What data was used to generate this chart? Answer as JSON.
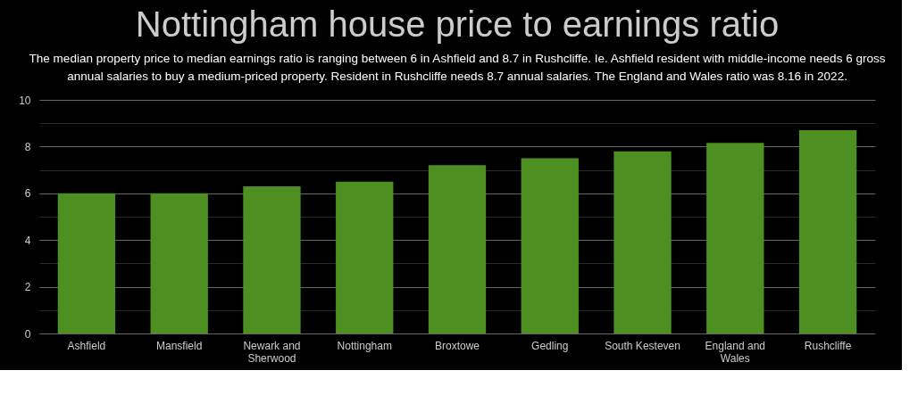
{
  "chart_data": {
    "type": "bar",
    "title": "Nottingham house price to earnings ratio",
    "subtitle": "The median property price to median earnings ratio is ranging between 6 in Ashfield and 8.7 in Rushcliffe. Ie. Ashfield resident with middle-income needs 6 gross annual salaries to buy a medium-priced property. Resident in Rushcliffe needs 8.7 annual salaries. The England and Wales ratio was 8.16 in 2022.",
    "categories": [
      "Ashfield",
      "Mansfield",
      "Newark and Sherwood",
      "Nottingham",
      "Broxtowe",
      "Gedling",
      "South Kesteven",
      "England and Wales",
      "Rushcliffe"
    ],
    "values": [
      6.0,
      6.0,
      6.3,
      6.5,
      7.2,
      7.5,
      7.8,
      8.16,
      8.7
    ],
    "color": "#4d9021",
    "ylim": [
      0,
      10
    ],
    "yticks": [
      0,
      {
        "value": 1,
        "label": null
      },
      2,
      {
        "value": 3,
        "label": null
      },
      4,
      {
        "value": 5,
        "label": null
      },
      6,
      {
        "value": 7,
        "label": null
      },
      8,
      {
        "value": 9,
        "label": null
      },
      10
    ],
    "grid": "y"
  }
}
